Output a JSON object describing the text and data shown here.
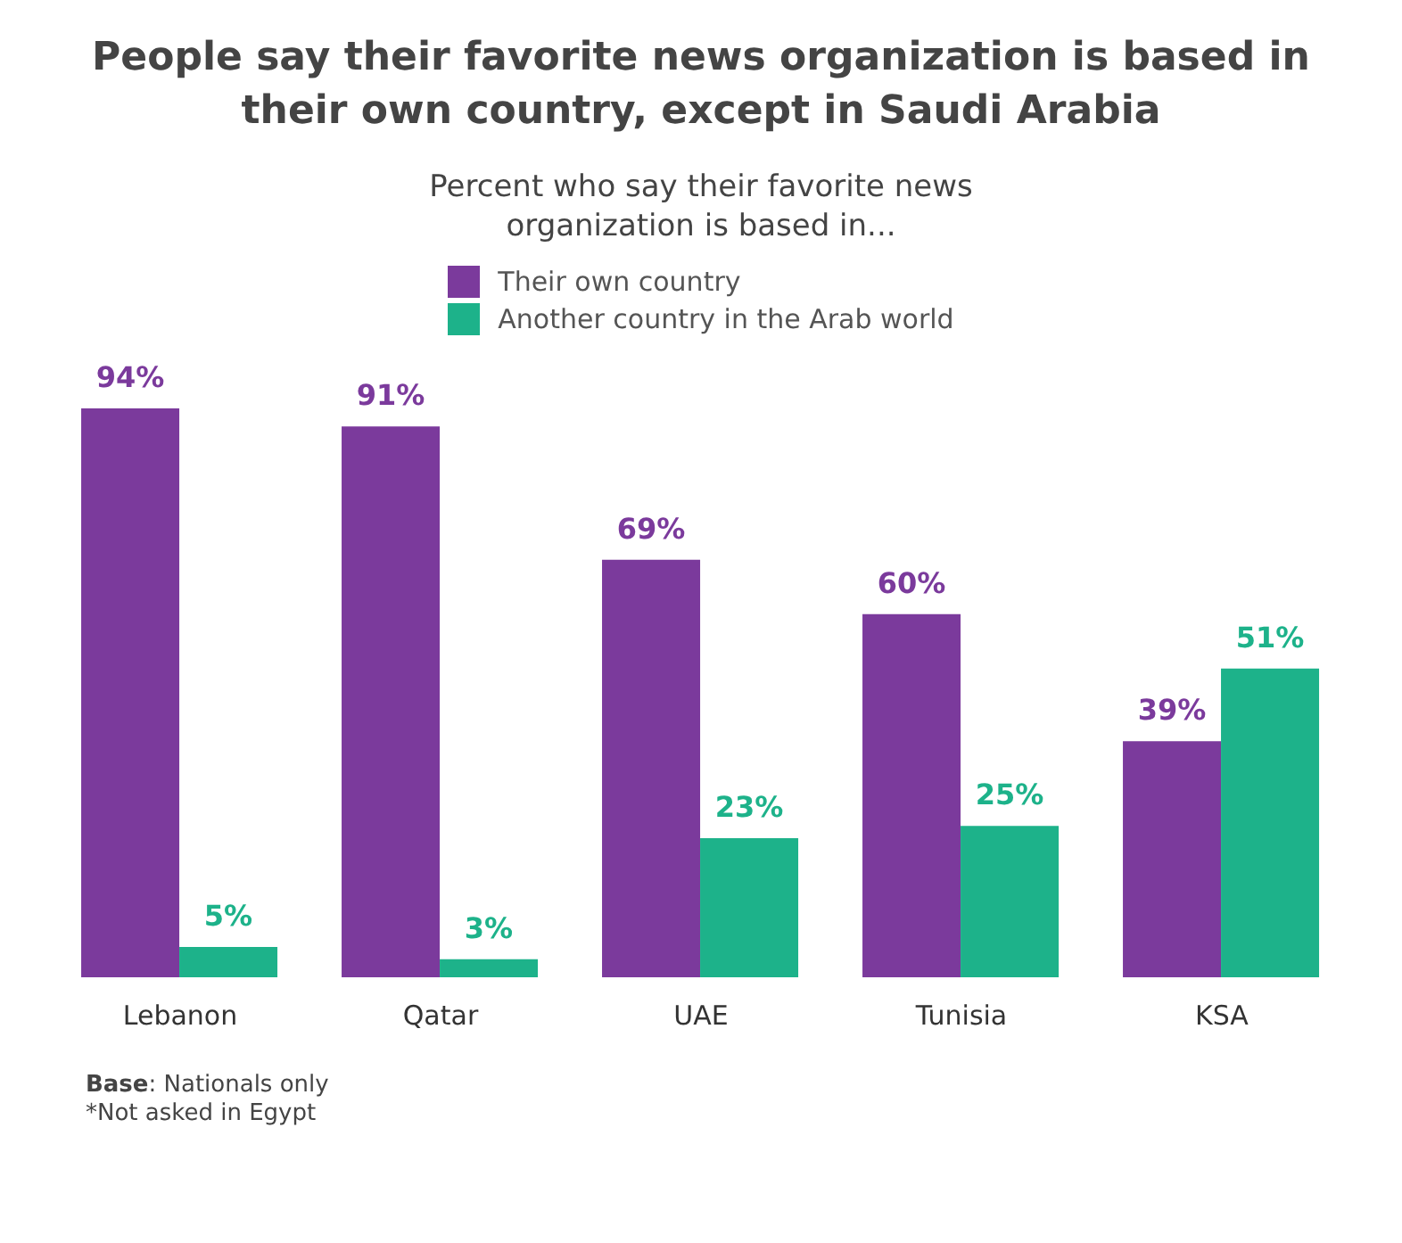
{
  "chart_data": {
    "type": "bar",
    "title": "People say their favorite news organization is based in their own country, except in Saudi Arabia",
    "subtitle": "Percent who say their favorite news organization is based in...",
    "categories": [
      "Lebanon",
      "Qatar",
      "UAE",
      "Tunisia",
      "KSA"
    ],
    "series": [
      {
        "name": "Their own country",
        "color": "#7b3a9c",
        "values": [
          94,
          91,
          69,
          60,
          39
        ],
        "value_labels": [
          "94%",
          "91%",
          "69%",
          "60%",
          "39%"
        ]
      },
      {
        "name": "Another country in the Arab world",
        "color": "#1db28a",
        "values": [
          5,
          3,
          23,
          25,
          51
        ],
        "value_labels": [
          "5%",
          "3%",
          "23%",
          "25%",
          "51%"
        ]
      }
    ],
    "legend": "top",
    "annotations": [
      "Base: Nationals only",
      "*Not asked in Egypt"
    ]
  }
}
